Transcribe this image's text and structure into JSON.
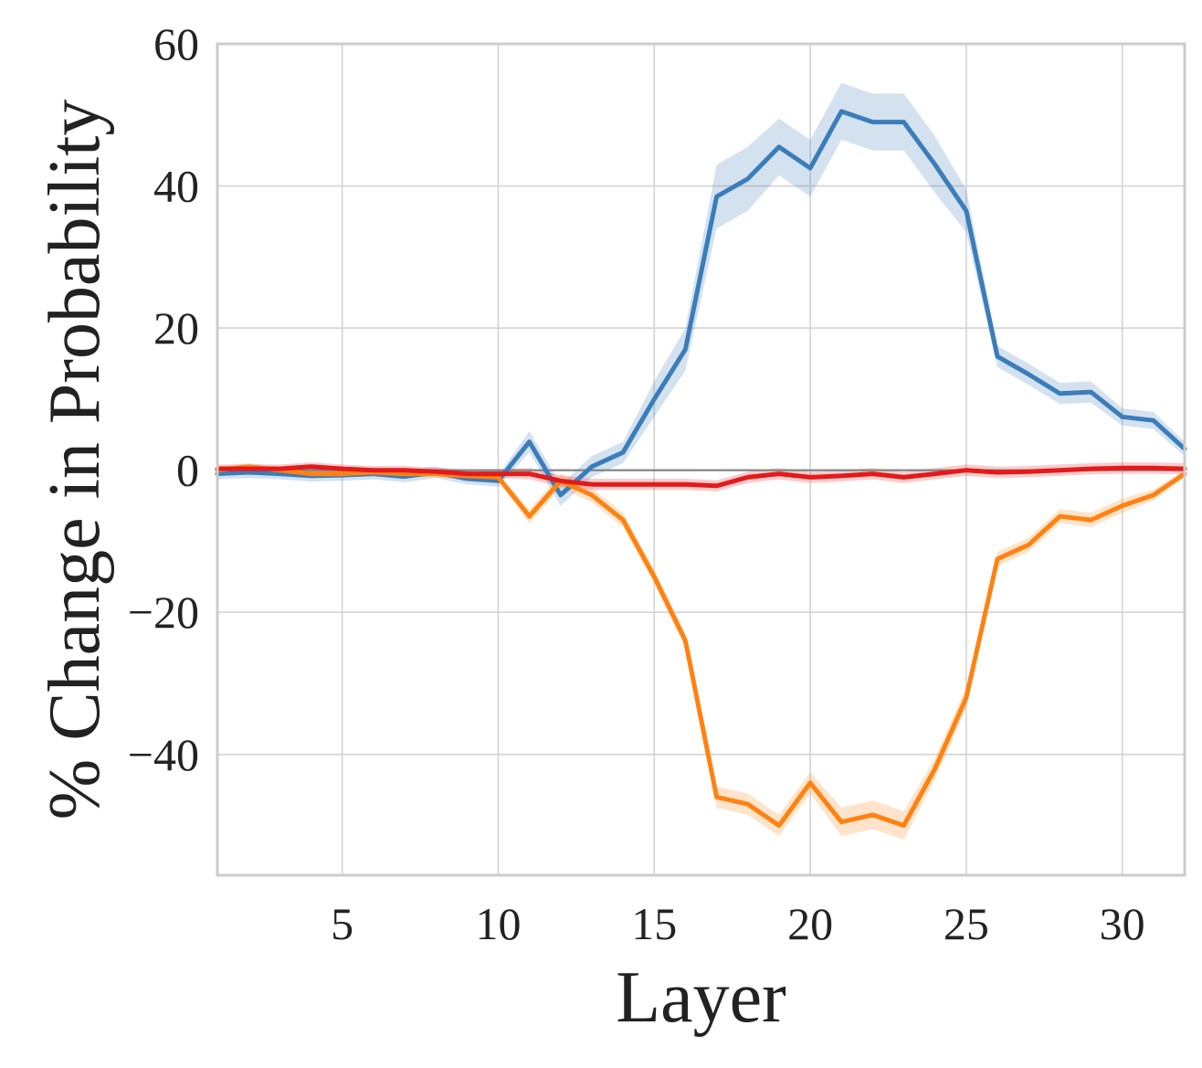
{
  "chart_data": {
    "type": "line",
    "xlabel": "Layer",
    "ylabel": "% Change in Probability",
    "xlim": [
      1,
      32
    ],
    "ylim": [
      -57,
      60
    ],
    "xticks": [
      5,
      10,
      15,
      20,
      25,
      30
    ],
    "yticks": [
      60,
      40,
      20,
      0,
      -20,
      -40
    ],
    "ytick_labels": [
      "60",
      "40",
      "20",
      "0",
      "−20",
      "−40"
    ],
    "grid": true,
    "reference_line_y": 0,
    "x": [
      1,
      2,
      3,
      4,
      5,
      6,
      7,
      8,
      9,
      10,
      11,
      12,
      13,
      14,
      15,
      16,
      17,
      18,
      19,
      20,
      21,
      22,
      23,
      24,
      25,
      26,
      27,
      28,
      29,
      30,
      31,
      32
    ],
    "series": [
      {
        "color": "#3b7dba",
        "values": [
          -0.5,
          -0.3,
          -0.5,
          -0.8,
          -0.7,
          -0.5,
          -0.9,
          -0.3,
          -1.2,
          -1.5,
          4.0,
          -3.5,
          0.5,
          2.5,
          10.0,
          17.0,
          38.5,
          41.0,
          45.5,
          42.5,
          50.5,
          49.0,
          49.0,
          43.0,
          36.5,
          16.0,
          13.5,
          10.8,
          11.0,
          7.5,
          7.0,
          3.0
        ],
        "band": [
          0.8,
          0.8,
          0.8,
          0.8,
          0.8,
          0.8,
          0.8,
          0.8,
          0.8,
          0.8,
          1.5,
          1.5,
          1.5,
          1.5,
          2.5,
          3.0,
          4.5,
          4.5,
          4.0,
          4.0,
          4.0,
          4.0,
          4.0,
          4.0,
          3.0,
          1.5,
          1.5,
          1.5,
          1.5,
          1.2,
          1.2,
          1.0
        ]
      },
      {
        "color": "#ff8211",
        "values": [
          0.0,
          0.5,
          0.0,
          -0.5,
          -0.5,
          -0.3,
          -0.5,
          -0.5,
          -0.8,
          -1.0,
          -6.5,
          -1.5,
          -3.5,
          -7.0,
          -15.0,
          -24.0,
          -46.0,
          -47.0,
          -50.0,
          -44.0,
          -49.5,
          -48.5,
          -50.0,
          -42.0,
          -32.0,
          -12.5,
          -10.5,
          -6.5,
          -7.0,
          -5.0,
          -3.5,
          -0.5
        ],
        "band": [
          0.5,
          0.5,
          0.5,
          0.5,
          0.5,
          0.5,
          0.5,
          0.5,
          0.5,
          0.5,
          1.0,
          1.0,
          1.0,
          1.0,
          1.0,
          1.0,
          1.5,
          1.5,
          1.5,
          1.5,
          2.0,
          2.0,
          2.0,
          1.5,
          1.5,
          1.0,
          1.0,
          1.0,
          1.0,
          1.0,
          0.8,
          0.5
        ]
      },
      {
        "color": "#e31a1c",
        "values": [
          0.2,
          0.2,
          0.2,
          0.5,
          0.2,
          0.0,
          0.0,
          -0.2,
          -0.5,
          -0.5,
          -0.5,
          -1.5,
          -2.0,
          -2.0,
          -2.0,
          -2.0,
          -2.2,
          -1.0,
          -0.5,
          -1.0,
          -0.8,
          -0.5,
          -1.0,
          -0.5,
          0.0,
          -0.3,
          -0.2,
          0.0,
          0.2,
          0.3,
          0.3,
          0.2
        ],
        "band": [
          0.6,
          0.6,
          0.6,
          0.6,
          0.6,
          0.6,
          0.6,
          0.6,
          0.6,
          0.6,
          0.8,
          0.8,
          0.8,
          0.8,
          0.8,
          0.8,
          0.8,
          0.8,
          0.8,
          0.8,
          0.8,
          0.8,
          0.8,
          0.8,
          0.8,
          0.8,
          0.8,
          0.8,
          0.8,
          0.8,
          0.8,
          0.8
        ]
      }
    ]
  }
}
